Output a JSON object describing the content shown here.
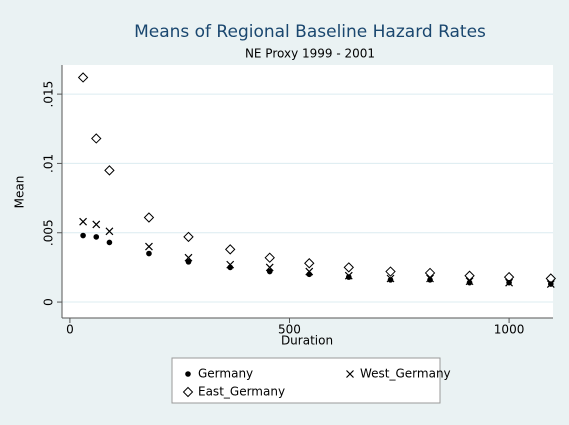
{
  "chart_data": {
    "type": "scatter",
    "title": "Means of Regional Baseline Hazard Rates",
    "subtitle": "NE Proxy 1999 - 2001",
    "x_label": "Duration",
    "y_label": "Mean",
    "x": [
      30,
      60,
      90,
      180,
      270,
      365,
      455,
      545,
      635,
      730,
      820,
      910,
      1000,
      1095
    ],
    "series": [
      {
        "name": "Germany",
        "color": "#000000",
        "marker": "circle",
        "values": [
          0.0048,
          0.0047,
          0.0043,
          0.0035,
          0.0029,
          0.0025,
          0.0022,
          0.002,
          0.0018,
          0.0016,
          0.0016,
          0.0014,
          0.0014,
          0.0013
        ]
      },
      {
        "name": "West_Germany",
        "color": "#000000",
        "marker": "x",
        "values": [
          0.0058,
          0.0056,
          0.0051,
          0.004,
          0.0032,
          0.0027,
          0.0025,
          0.0022,
          0.0019,
          0.0017,
          0.0017,
          0.0015,
          0.0014,
          0.0013
        ]
      },
      {
        "name": "East_Germany",
        "color": "#000000",
        "marker": "diamond",
        "values": [
          0.0162,
          0.0118,
          0.0095,
          0.0061,
          0.0047,
          0.0038,
          0.0032,
          0.0028,
          0.0025,
          0.0022,
          0.0021,
          0.0019,
          0.0018,
          0.0017
        ]
      }
    ],
    "xlim": [
      -18,
      1100
    ],
    "xticks": [
      0,
      500,
      1000
    ],
    "ylim": [
      -0.00115,
      0.0171
    ],
    "yticks": [
      0,
      {
        "value": 0.005,
        "label": ".005"
      },
      {
        "value": 0.01,
        "label": ".01"
      },
      {
        "value": 0.015,
        "label": ".015"
      }
    ],
    "grid": true
  }
}
